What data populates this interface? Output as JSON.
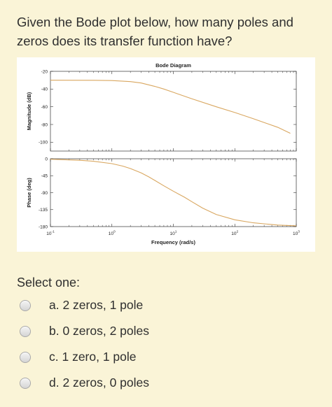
{
  "question": {
    "text": "Given the Bode plot below, how many poles and zeros does its transfer function have?"
  },
  "chart_data": {
    "type": "line",
    "title": "Bode Diagram",
    "xlabel": "Frequency  (rad/s)",
    "x_scale": "log",
    "xlim": [
      0.1,
      1000
    ],
    "x_ticks": [
      {
        "value": 0.1,
        "base": "10",
        "exp": "-1"
      },
      {
        "value": 1,
        "base": "10",
        "exp": "0"
      },
      {
        "value": 10,
        "base": "10",
        "exp": "1"
      },
      {
        "value": 100,
        "base": "10",
        "exp": "2"
      },
      {
        "value": 1000,
        "base": "10",
        "exp": "3"
      }
    ],
    "line_color": "#d9a760",
    "magnitude": {
      "ylabel": "Magnitude (dB)",
      "ylim": [
        -110,
        -20
      ],
      "y_ticks": [
        -20,
        -40,
        -60,
        -80,
        -100
      ],
      "x": [
        0.1,
        0.5,
        1,
        2,
        3,
        5,
        7,
        10,
        20,
        50,
        100,
        200,
        500,
        800
      ],
      "y": [
        -30,
        -30.1,
        -30.4,
        -31.6,
        -33.2,
        -37,
        -40,
        -43.7,
        -51,
        -60,
        -66.5,
        -73.5,
        -83.2,
        -90
      ]
    },
    "phase": {
      "ylabel": "Phase (deg)",
      "ylim": [
        -180,
        0
      ],
      "y_ticks": [
        0,
        -45,
        -90,
        -135,
        -180
      ],
      "x": [
        0.1,
        0.3,
        0.5,
        1,
        1.5,
        2,
        3,
        4,
        5,
        7,
        10,
        15,
        20,
        30,
        50,
        100,
        200,
        500,
        1000
      ],
      "y": [
        -1.3,
        -4,
        -6.6,
        -13,
        -19.5,
        -26,
        -37.6,
        -48.3,
        -57.5,
        -71.8,
        -86.2,
        -101.6,
        -114,
        -131,
        -148,
        -162,
        -170,
        -176,
        -178
      ]
    }
  },
  "select_label": "Select one:",
  "options": [
    {
      "label": "a. 2 zeros, 1 pole"
    },
    {
      "label": "b. 0 zeros, 2 poles"
    },
    {
      "label": "c. 1 zero, 1 pole"
    },
    {
      "label": "d. 2 zeros, 0 poles"
    }
  ]
}
